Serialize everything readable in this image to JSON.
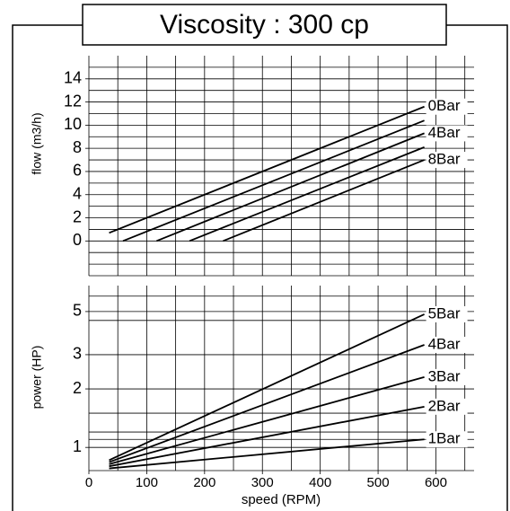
{
  "chart_data": [
    {
      "type": "line",
      "title": "Viscosity : 300 cp",
      "ylabel": "flow (m3/h)",
      "xlim": [
        0,
        666
      ],
      "ylim": [
        -3,
        16
      ],
      "yticks": [
        0,
        2,
        4,
        6,
        8,
        10,
        12,
        14
      ],
      "x_gridlines": [
        0,
        50,
        100,
        150,
        200,
        250,
        300,
        350,
        400,
        450,
        500,
        550,
        600,
        650
      ],
      "y_gridlines": [
        -2,
        -1,
        0,
        1,
        2,
        3,
        4,
        5,
        6,
        7,
        8,
        9,
        10,
        11,
        12,
        13,
        14,
        15
      ],
      "log": false,
      "color": "#000000",
      "series": [
        {
          "name": "0Bar",
          "x": [
            35,
            580
          ],
          "values": [
            0.7,
            11.6
          ]
        },
        {
          "x": [
            59,
            580
          ],
          "values": [
            0,
            10.4
          ]
        },
        {
          "name": "4Bar",
          "x": [
            117,
            580
          ],
          "values": [
            0,
            9.3
          ]
        },
        {
          "x": [
            174,
            580
          ],
          "values": [
            0,
            8.1
          ]
        },
        {
          "name": "8Bar",
          "x": [
            232,
            580
          ],
          "values": [
            0,
            7.0
          ]
        }
      ]
    },
    {
      "type": "line",
      "ylabel": "power (HP)",
      "xlabel": "speed (RPM)",
      "xlim": [
        0,
        666
      ],
      "ylim": [
        0.76,
        6.8
      ],
      "log": true,
      "color": "#000000",
      "xticks": [
        0,
        100,
        200,
        300,
        400,
        500,
        600
      ],
      "yticks": [
        1,
        2,
        3,
        5
      ],
      "x_gridlines": [
        0,
        50,
        100,
        150,
        200,
        250,
        300,
        350,
        400,
        450,
        500,
        550,
        600,
        650
      ],
      "y_gridlines": [
        1,
        1.1,
        1.2,
        1.5,
        2,
        3,
        4.5,
        5,
        6
      ],
      "series": [
        {
          "name": "5Bar",
          "x": [
            35,
            580
          ],
          "values": [
            0.86,
            4.84
          ]
        },
        {
          "name": "4Bar",
          "x": [
            35,
            580
          ],
          "values": [
            0.84,
            3.37
          ]
        },
        {
          "name": "3Bar",
          "x": [
            35,
            580
          ],
          "values": [
            0.82,
            2.3
          ]
        },
        {
          "name": "2Bar",
          "x": [
            35,
            580
          ],
          "values": [
            0.8,
            1.62
          ]
        },
        {
          "name": "1Bar",
          "x": [
            35,
            580
          ],
          "values": [
            0.78,
            1.1
          ]
        }
      ]
    }
  ]
}
